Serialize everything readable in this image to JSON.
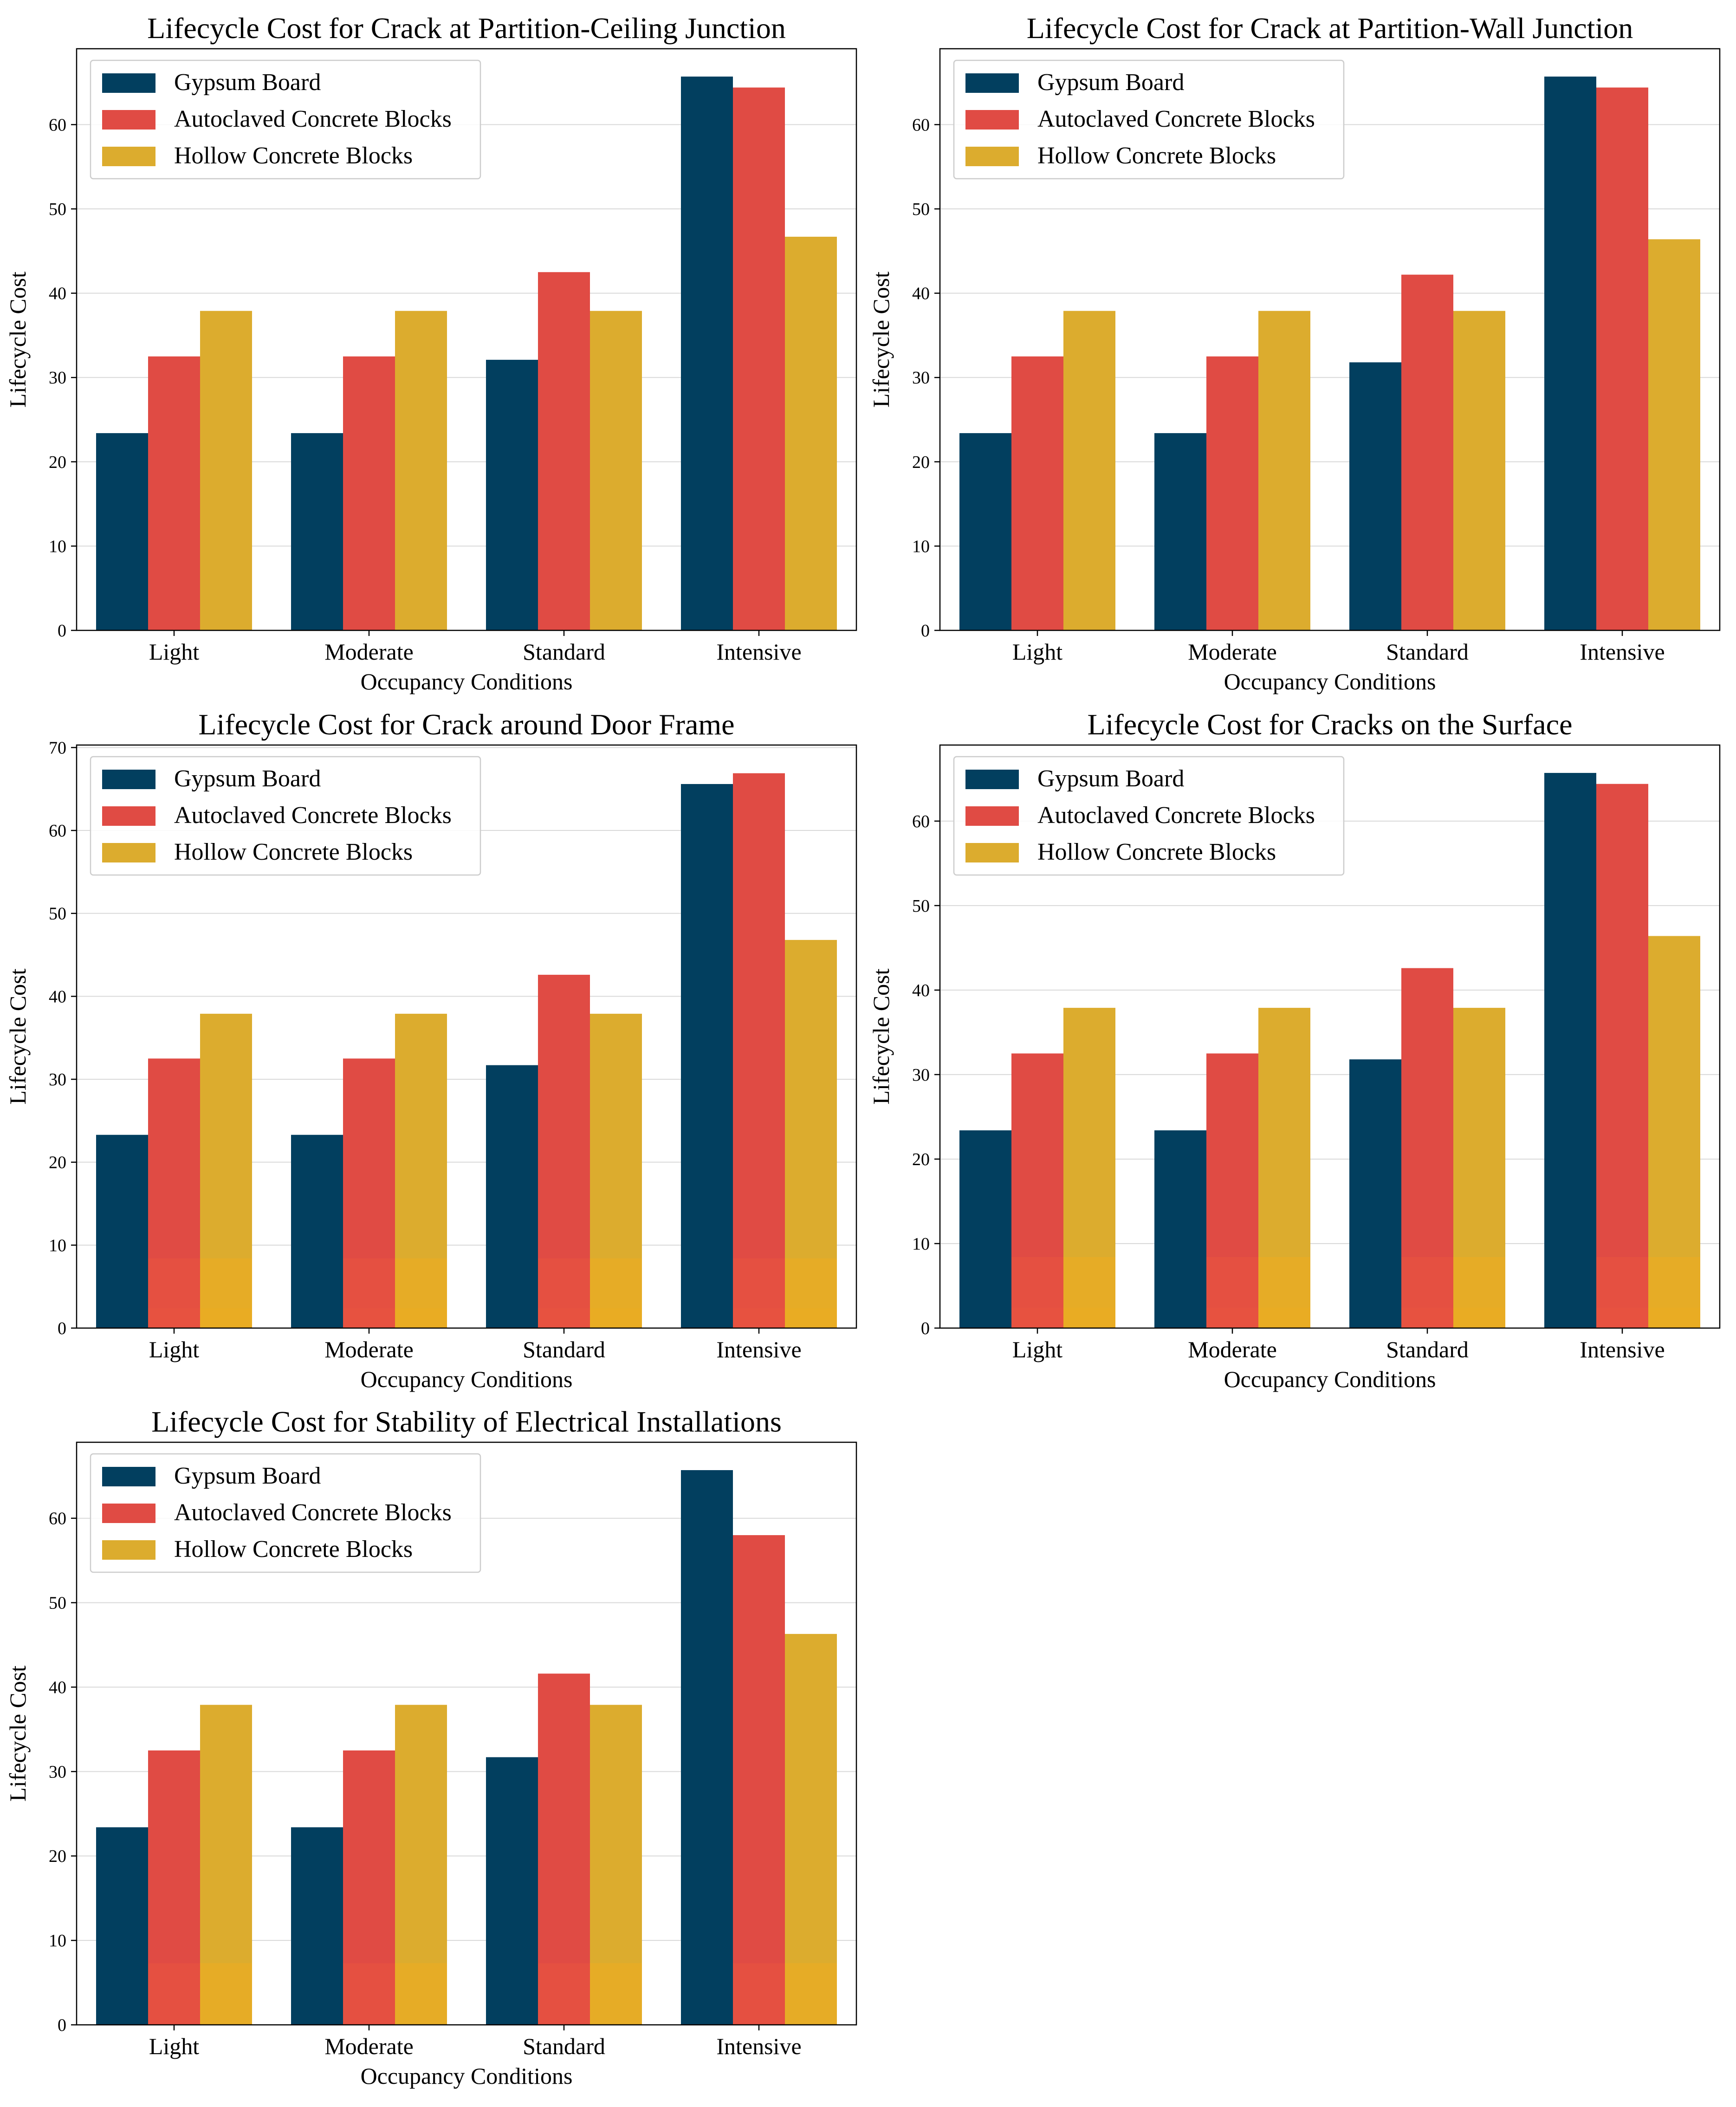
{
  "figure": {
    "series_colors": {
      "Gypsum Board": "#023f5f",
      "Autoclaved Concrete Blocks": "#e04b44",
      "Hollow Concrete Blocks": "#dcac2e"
    },
    "grid_color": "#d9d9d9"
  },
  "chart_data": [
    {
      "type": "bar",
      "title": "Lifecycle Cost for Crack at Partition-Ceiling Junction",
      "xlabel": "Occupancy Conditions",
      "ylabel": "Lifecycle Cost",
      "categories": [
        "Light",
        "Moderate",
        "Standard",
        "Intensive"
      ],
      "ylim": [
        0,
        69
      ],
      "yticks": [
        0,
        10,
        20,
        30,
        40,
        50,
        60
      ],
      "grid": true,
      "legend_position": "top-left",
      "series": [
        {
          "name": "Gypsum Board",
          "values": [
            23.4,
            23.4,
            32.1,
            65.7
          ]
        },
        {
          "name": "Autoclaved Concrete Blocks",
          "values": [
            32.5,
            32.5,
            42.5,
            64.4
          ]
        },
        {
          "name": "Hollow Concrete Blocks",
          "values": [
            37.9,
            37.9,
            37.9,
            46.7
          ]
        }
      ]
    },
    {
      "type": "bar",
      "title": "Lifecycle Cost for Crack at Partition-Wall Junction",
      "xlabel": "Occupancy Conditions",
      "ylabel": "Lifecycle Cost",
      "categories": [
        "Light",
        "Moderate",
        "Standard",
        "Intensive"
      ],
      "ylim": [
        0,
        69
      ],
      "yticks": [
        0,
        10,
        20,
        30,
        40,
        50,
        60
      ],
      "grid": true,
      "legend_position": "top-left",
      "series": [
        {
          "name": "Gypsum Board",
          "values": [
            23.4,
            23.4,
            31.8,
            65.7
          ]
        },
        {
          "name": "Autoclaved Concrete Blocks",
          "values": [
            32.5,
            32.5,
            42.2,
            64.4
          ]
        },
        {
          "name": "Hollow Concrete Blocks",
          "values": [
            37.9,
            37.9,
            37.9,
            46.4
          ]
        }
      ]
    },
    {
      "type": "bar",
      "title": "Lifecycle Cost for Crack around Door Frame",
      "xlabel": "Occupancy Conditions",
      "ylabel": "Lifecycle Cost",
      "categories": [
        "Light",
        "Moderate",
        "Standard",
        "Intensive"
      ],
      "ylim": [
        0,
        70.3
      ],
      "yticks": [
        0,
        10,
        20,
        30,
        40,
        50,
        60,
        70
      ],
      "grid": true,
      "legend_position": "top-left",
      "series": [
        {
          "name": "Gypsum Board",
          "values": [
            23.3,
            23.3,
            31.7,
            65.6
          ]
        },
        {
          "name": "Autoclaved Concrete Blocks",
          "values": [
            32.5,
            32.5,
            42.6,
            66.9
          ]
        },
        {
          "name": "Hollow Concrete Blocks",
          "values": [
            37.9,
            37.9,
            37.9,
            46.8
          ]
        }
      ],
      "overlay_layers": [
        {
          "values": [
            8.4,
            8.4,
            8.4,
            8.4
          ]
        },
        {
          "values": [
            2.4,
            2.4,
            2.4,
            2.4
          ]
        }
      ]
    },
    {
      "type": "bar",
      "title": "Lifecycle Cost for Cracks on the Surface",
      "xlabel": "Occupancy Conditions",
      "ylabel": "Lifecycle Cost",
      "categories": [
        "Light",
        "Moderate",
        "Standard",
        "Intensive"
      ],
      "ylim": [
        0,
        69
      ],
      "yticks": [
        0,
        10,
        20,
        30,
        40,
        50,
        60
      ],
      "grid": true,
      "legend_position": "top-left",
      "series": [
        {
          "name": "Gypsum Board",
          "values": [
            23.4,
            23.4,
            31.8,
            65.7
          ]
        },
        {
          "name": "Autoclaved Concrete Blocks",
          "values": [
            32.5,
            32.5,
            42.6,
            64.4
          ]
        },
        {
          "name": "Hollow Concrete Blocks",
          "values": [
            37.9,
            37.9,
            37.9,
            46.4
          ]
        }
      ],
      "overlay_layers": [
        {
          "values": [
            8.4,
            8.4,
            8.4,
            8.4
          ]
        },
        {
          "values": [
            2.4,
            2.4,
            2.4,
            2.4
          ]
        }
      ]
    },
    {
      "type": "bar",
      "title": "Lifecycle Cost for Stability of Electrical Installations",
      "xlabel": "Occupancy Conditions",
      "ylabel": "Lifecycle Cost",
      "categories": [
        "Light",
        "Moderate",
        "Standard",
        "Intensive"
      ],
      "ylim": [
        0,
        69
      ],
      "yticks": [
        0,
        10,
        20,
        30,
        40,
        50,
        60
      ],
      "grid": true,
      "legend_position": "top-left",
      "series": [
        {
          "name": "Gypsum Board",
          "values": [
            23.4,
            23.4,
            31.7,
            65.7
          ]
        },
        {
          "name": "Autoclaved Concrete Blocks",
          "values": [
            32.5,
            32.5,
            41.6,
            58.0
          ]
        },
        {
          "name": "Hollow Concrete Blocks",
          "values": [
            37.9,
            37.9,
            37.9,
            46.3
          ]
        }
      ],
      "overlay_layers": [
        {
          "values": [
            7.3,
            7.3,
            7.3,
            7.3
          ]
        }
      ]
    }
  ]
}
